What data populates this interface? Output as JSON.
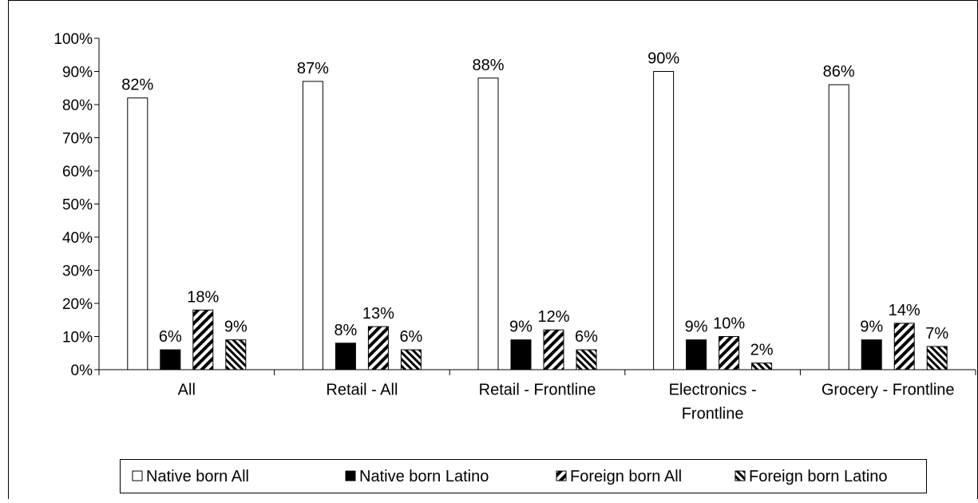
{
  "chart_data": {
    "type": "bar",
    "title": "",
    "xlabel": "",
    "ylabel": "",
    "ylim": [
      0,
      100
    ],
    "y_ticks": [
      "0%",
      "10%",
      "20%",
      "30%",
      "40%",
      "50%",
      "60%",
      "70%",
      "80%",
      "90%",
      "100%"
    ],
    "y_tick_values": [
      0,
      10,
      20,
      30,
      40,
      50,
      60,
      70,
      80,
      90,
      100
    ],
    "categories": [
      [
        "All"
      ],
      [
        "Retail - All"
      ],
      [
        "Retail - Frontline"
      ],
      [
        "Electronics -",
        "Frontline"
      ],
      [
        "Grocery - Frontline"
      ]
    ],
    "series": [
      {
        "name": "Native born All",
        "values": [
          82,
          87,
          88,
          90,
          86
        ],
        "labels": [
          "82%",
          "87%",
          "88%",
          "90%",
          "86%"
        ],
        "fill": "white"
      },
      {
        "name": "Native born Latino",
        "values": [
          6,
          8,
          9,
          9,
          9
        ],
        "labels": [
          "6%",
          "8%",
          "9%",
          "9%",
          "9%"
        ],
        "fill": "solid-black"
      },
      {
        "name": "Foreign born All",
        "values": [
          18,
          13,
          12,
          10,
          14
        ],
        "labels": [
          "18%",
          "13%",
          "12%",
          "10%",
          "14%"
        ],
        "fill": "diagonal-hatch-wide"
      },
      {
        "name": "Foreign born Latino",
        "values": [
          9,
          6,
          6,
          2,
          7
        ],
        "labels": [
          "9%",
          "6%",
          "6%",
          "2%",
          "7%"
        ],
        "fill": "diagonal-hatch-reverse"
      }
    ],
    "grid": false,
    "legend_position": "bottom",
    "colors": {
      "bar_stroke": "#000000",
      "solid": "#000000",
      "background": "#ffffff"
    }
  }
}
